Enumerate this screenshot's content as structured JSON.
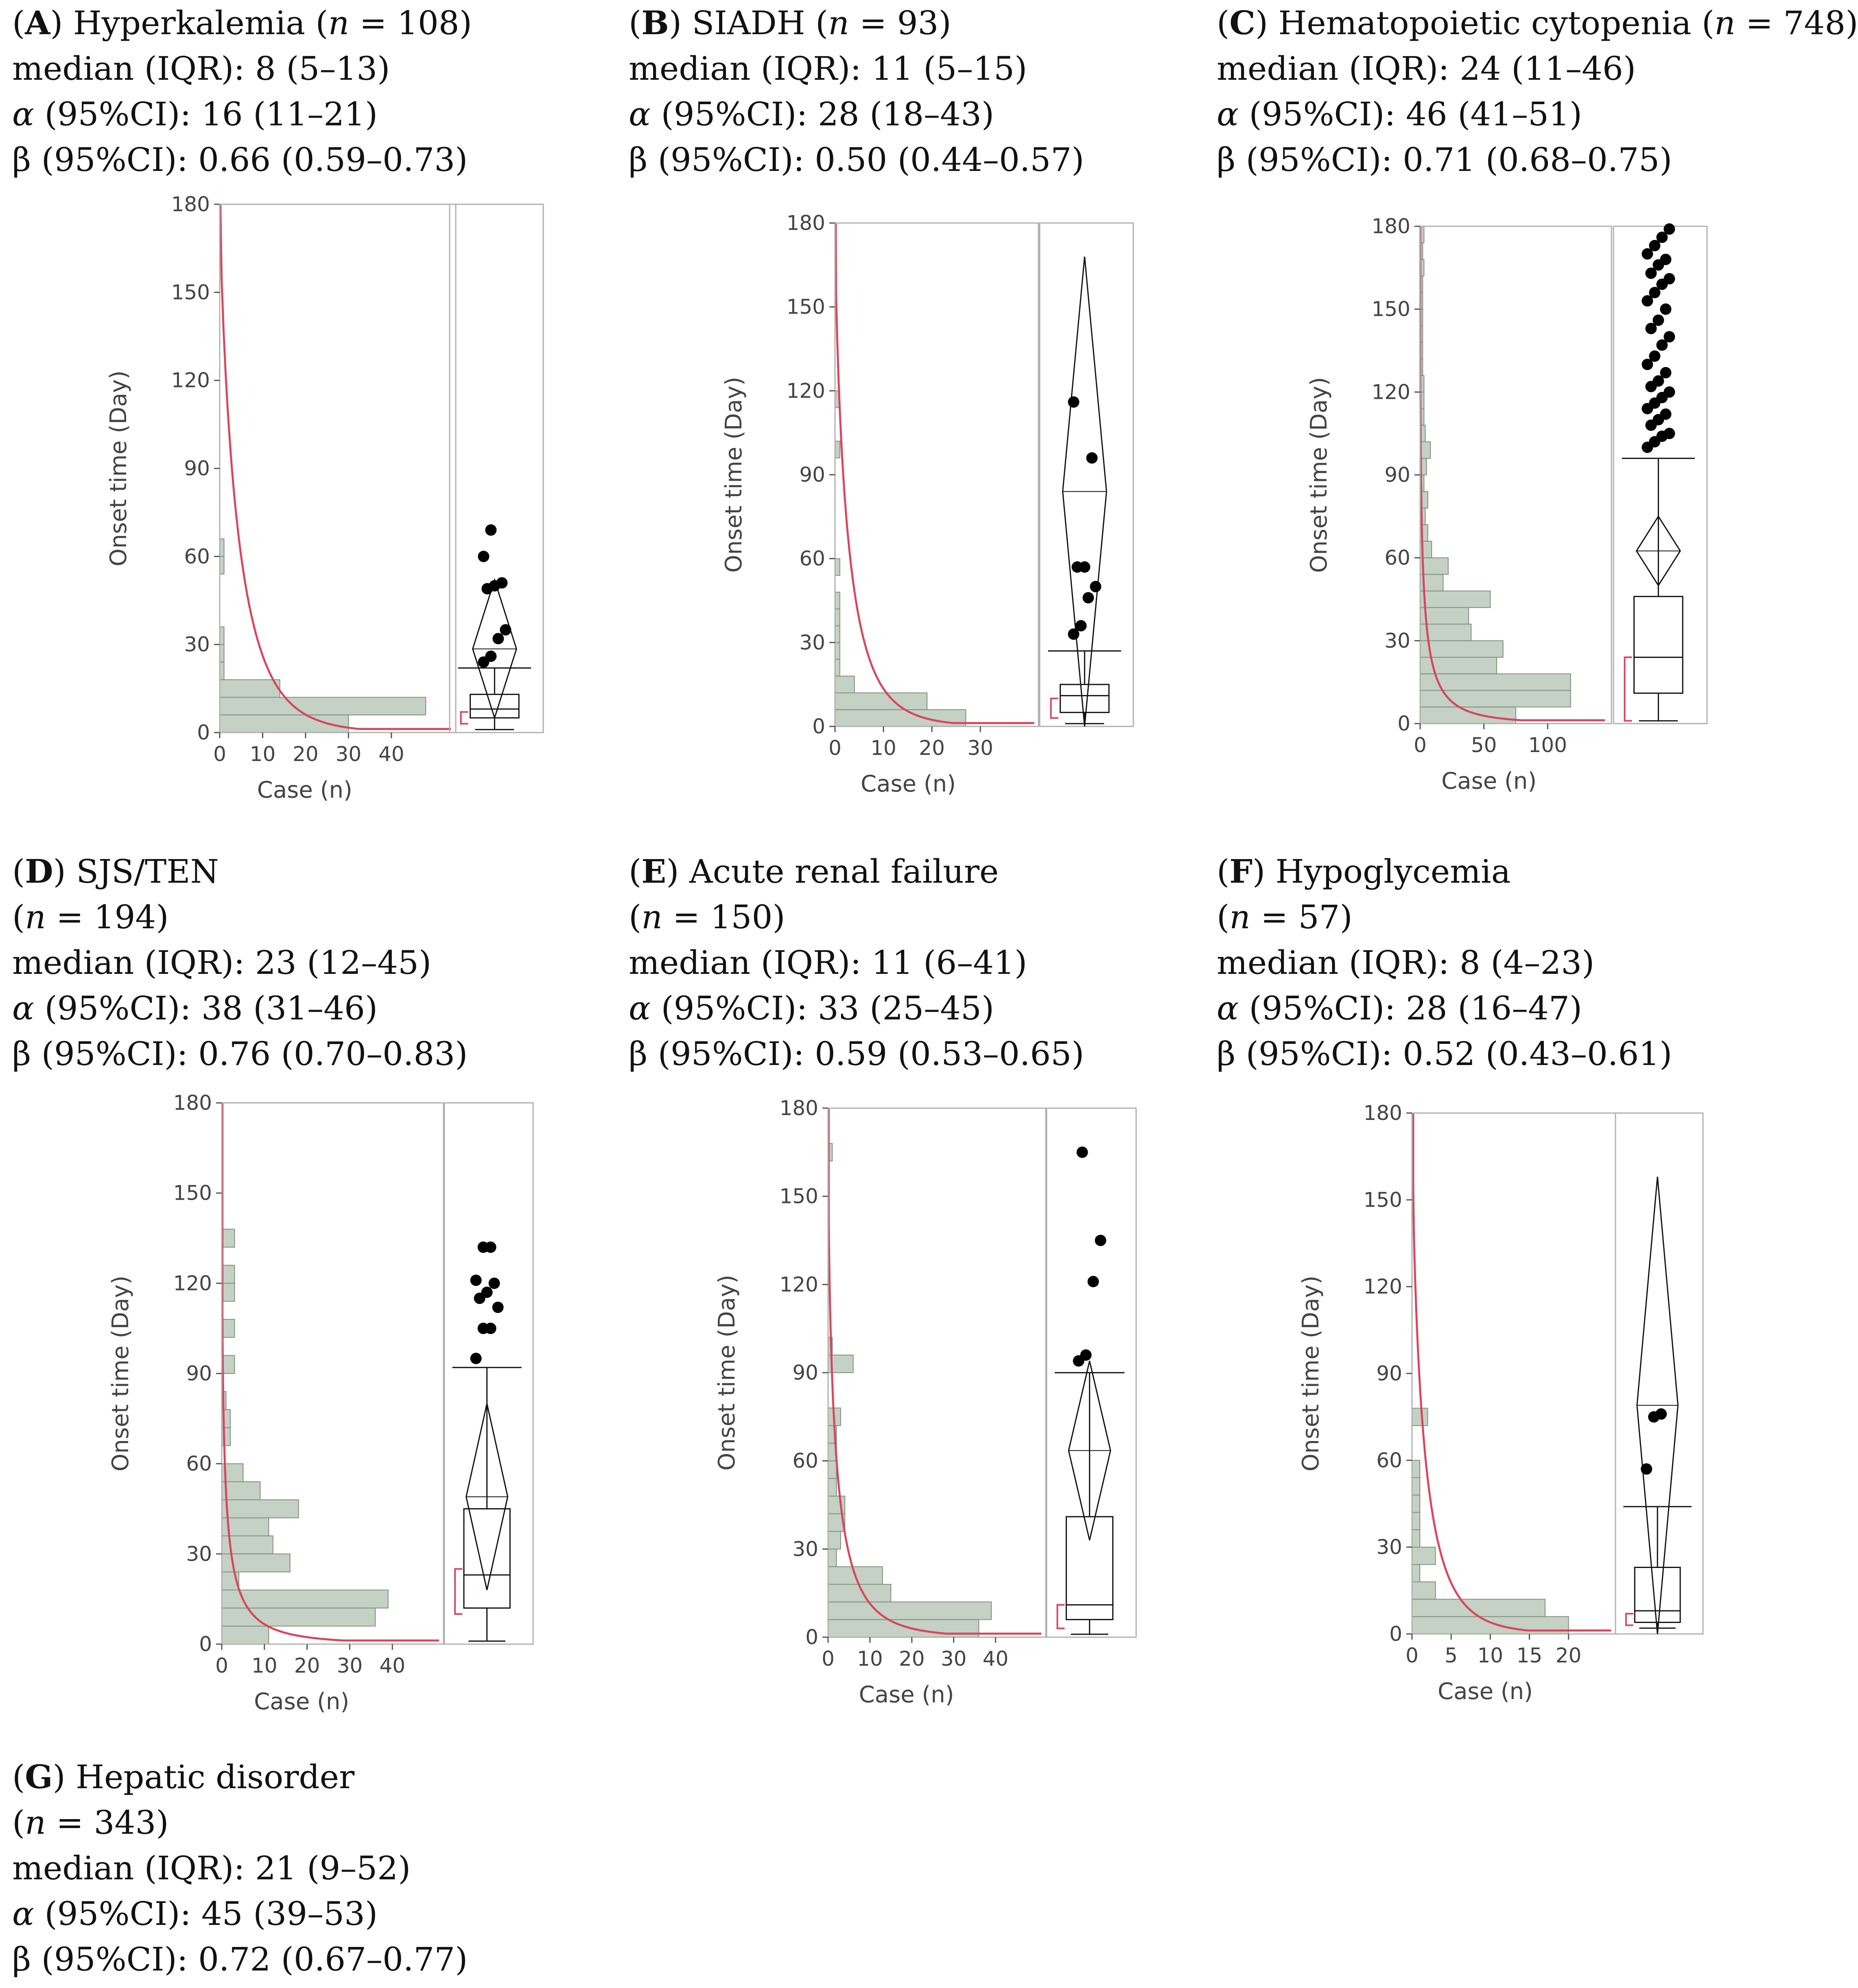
{
  "colors": {
    "hist_fill": "#c4d1c4",
    "hist_stroke": "#7f8f7f",
    "curve": "#d9455f",
    "frame": "#b0b0b0",
    "text": "#444444",
    "point": "#000000"
  },
  "chart_data": [
    {
      "type": "histogram_boxplot",
      "letter": "A",
      "title": "Hyperkalemia",
      "n": "108",
      "median_iqr": "8 (5–13)",
      "alpha_ci": "16 (11–21)",
      "beta_ci": "0.66 (0.59–0.73)",
      "xlabel": "Case (n)",
      "ylabel": "Onset time (Day)",
      "ylim": [
        0,
        180
      ],
      "yticks": [
        0,
        30,
        60,
        90,
        120,
        150,
        180
      ],
      "xlim": [
        0,
        55
      ],
      "xticks": [
        0,
        10,
        20,
        30,
        40
      ],
      "bin_width": 6,
      "bins": [
        [
          0,
          30
        ],
        [
          6,
          48
        ],
        [
          12,
          14
        ],
        [
          18,
          1
        ],
        [
          24,
          1
        ],
        [
          30,
          1
        ],
        [
          54,
          1
        ],
        [
          60,
          1
        ]
      ],
      "curve": {
        "k": 1.05,
        "a": 1.3,
        "c": 1.35
      },
      "box": {
        "min": 1,
        "q1": 5,
        "median": 8,
        "q3": 13,
        "whisker_high": 22
      },
      "diamond": {
        "low": 5,
        "high": 52
      },
      "outliers": [
        24,
        26,
        32,
        35,
        49,
        50,
        51,
        60,
        69
      ],
      "confidence_bracket": [
        3,
        7
      ]
    },
    {
      "type": "histogram_boxplot",
      "letter": "B",
      "title": "SIADH",
      "n": "93",
      "median_iqr": "11 (5–15)",
      "alpha_ci": "28 (18–43)",
      "beta_ci": "0.50 (0.44–0.57)",
      "xlabel": "Case (n)",
      "ylabel": "Onset time (Day)",
      "ylim": [
        0,
        180
      ],
      "yticks": [
        0,
        30,
        60,
        90,
        120,
        150,
        180
      ],
      "xlim": [
        0,
        42
      ],
      "xticks": [
        0,
        10,
        20,
        30
      ],
      "bin_width": 6,
      "bins": [
        [
          0,
          27
        ],
        [
          6,
          19
        ],
        [
          12,
          4
        ],
        [
          18,
          1
        ],
        [
          24,
          1
        ],
        [
          30,
          1
        ],
        [
          36,
          1
        ],
        [
          42,
          1
        ],
        [
          54,
          1
        ],
        [
          96,
          1
        ],
        [
          114,
          1
        ]
      ],
      "curve": {
        "k": 1.15,
        "a": 1.4,
        "c": 1.2
      },
      "box": {
        "min": 1,
        "q1": 5,
        "median": 11,
        "q3": 15,
        "whisker_high": 27
      },
      "diamond": {
        "low": 0,
        "high": 168
      },
      "outliers": [
        33,
        36,
        46,
        50,
        57,
        57,
        96,
        116
      ],
      "confidence_bracket": [
        3,
        10
      ]
    },
    {
      "type": "histogram_boxplot",
      "letter": "C",
      "title": "Hematopoietic cytopenia",
      "n": "748",
      "median_iqr": "24 (11–46)",
      "alpha_ci": "46 (41–51)",
      "beta_ci": "0.71 (0.68–0.75)",
      "xlabel": "Case (n)",
      "ylabel": "Onset time (Day)",
      "ylim": [
        0,
        180
      ],
      "yticks": [
        0,
        30,
        60,
        90,
        120,
        150,
        180
      ],
      "xlim": [
        0,
        150
      ],
      "xticks": [
        0,
        50,
        100
      ],
      "bin_width": 6,
      "bins": [
        [
          0,
          75
        ],
        [
          6,
          118
        ],
        [
          12,
          118
        ],
        [
          18,
          60
        ],
        [
          24,
          65
        ],
        [
          30,
          40
        ],
        [
          36,
          38
        ],
        [
          42,
          55
        ],
        [
          48,
          18
        ],
        [
          54,
          22
        ],
        [
          60,
          9
        ],
        [
          66,
          6
        ],
        [
          72,
          4
        ],
        [
          78,
          6
        ],
        [
          84,
          3
        ],
        [
          90,
          5
        ],
        [
          96,
          8
        ],
        [
          102,
          4
        ],
        [
          108,
          3
        ],
        [
          114,
          3
        ],
        [
          120,
          3
        ],
        [
          126,
          2
        ],
        [
          132,
          2
        ],
        [
          138,
          2
        ],
        [
          144,
          2
        ],
        [
          150,
          2
        ],
        [
          156,
          2
        ],
        [
          162,
          3
        ],
        [
          168,
          2
        ],
        [
          174,
          3
        ]
      ],
      "curve": {
        "k": 2.1,
        "a": 3.6,
        "c": 1.0
      },
      "box": {
        "min": 1,
        "q1": 11,
        "median": 24,
        "q3": 46,
        "whisker_high": 96
      },
      "diamond": {
        "low": 50,
        "high": 75
      },
      "outliers": [
        100,
        102,
        104,
        105,
        108,
        110,
        112,
        114,
        116,
        118,
        120,
        122,
        124,
        127,
        130,
        133,
        137,
        140,
        143,
        146,
        150,
        153,
        156,
        159,
        161,
        163,
        166,
        168,
        170,
        173,
        176,
        179
      ],
      "confidence_bracket": [
        1,
        24
      ]
    },
    {
      "type": "histogram_boxplot",
      "letter": "D",
      "title": "SJS/TEN",
      "n": "194",
      "median_iqr": "23 (12–45)",
      "alpha_ci": "38 (31–46)",
      "beta_ci": "0.76 (0.70–0.83)",
      "xlabel": "Case (n)",
      "ylabel": "Onset time (Day)",
      "ylim": [
        0,
        180
      ],
      "yticks": [
        0,
        30,
        60,
        90,
        120,
        150,
        180
      ],
      "xlim": [
        0,
        52
      ],
      "xticks": [
        0,
        10,
        20,
        30,
        40
      ],
      "bin_width": 6,
      "bins": [
        [
          0,
          11
        ],
        [
          6,
          36
        ],
        [
          12,
          39
        ],
        [
          18,
          4
        ],
        [
          24,
          16
        ],
        [
          30,
          12
        ],
        [
          36,
          11
        ],
        [
          42,
          18
        ],
        [
          48,
          9
        ],
        [
          54,
          5
        ],
        [
          66,
          2
        ],
        [
          72,
          2
        ],
        [
          78,
          1
        ],
        [
          90,
          3
        ],
        [
          102,
          3
        ],
        [
          114,
          3
        ],
        [
          120,
          3
        ],
        [
          132,
          3
        ]
      ],
      "curve": {
        "k": 2.2,
        "a": 1.8,
        "c": 1.4
      },
      "box": {
        "min": 1,
        "q1": 12,
        "median": 23,
        "q3": 45,
        "whisker_high": 92
      },
      "diamond": {
        "low": 18,
        "high": 80
      },
      "outliers": [
        95,
        105,
        105,
        112,
        115,
        117,
        120,
        121,
        132,
        132
      ],
      "confidence_bracket": [
        10,
        25
      ]
    },
    {
      "type": "histogram_boxplot",
      "letter": "E",
      "title": "Acute renal failure",
      "n": "150",
      "median_iqr": "11 (6–41)",
      "alpha_ci": "33 (25–45)",
      "beta_ci": "0.59 (0.53–0.65)",
      "xlabel": "Case (n)",
      "ylabel": "Onset time (Day)",
      "ylim": [
        0,
        180
      ],
      "yticks": [
        0,
        30,
        60,
        90,
        120,
        150,
        180
      ],
      "xlim": [
        0,
        52
      ],
      "xticks": [
        0,
        10,
        20,
        30,
        40
      ],
      "bin_width": 6,
      "bins": [
        [
          0,
          36
        ],
        [
          6,
          39
        ],
        [
          12,
          15
        ],
        [
          18,
          13
        ],
        [
          24,
          2
        ],
        [
          30,
          3
        ],
        [
          36,
          4
        ],
        [
          42,
          4
        ],
        [
          48,
          2
        ],
        [
          54,
          2
        ],
        [
          60,
          2
        ],
        [
          66,
          2
        ],
        [
          72,
          3
        ],
        [
          90,
          6
        ],
        [
          96,
          1
        ],
        [
          162,
          1
        ]
      ],
      "curve": {
        "k": 1.5,
        "a": 1.8,
        "c": 1.3
      },
      "box": {
        "min": 1,
        "q1": 6,
        "median": 11,
        "q3": 41,
        "whisker_high": 90
      },
      "diamond": {
        "low": 33,
        "high": 94
      },
      "outliers": [
        94,
        96,
        121,
        135,
        165
      ],
      "confidence_bracket": [
        3,
        11
      ]
    },
    {
      "type": "histogram_boxplot",
      "letter": "F",
      "title": "Hypoglycemia",
      "n": "57",
      "median_iqr": "8 (4–23)",
      "alpha_ci": "28 (16–47)",
      "beta_ci": "0.52 (0.43–0.61)",
      "xlabel": "Case (n)",
      "ylabel": "Onset time (Day)",
      "ylim": [
        0,
        180
      ],
      "yticks": [
        0,
        30,
        60,
        90,
        120,
        150,
        180
      ],
      "xlim": [
        0,
        26
      ],
      "xticks": [
        0,
        5,
        10,
        15,
        20
      ],
      "bin_width": 6,
      "bins": [
        [
          0,
          20
        ],
        [
          6,
          17
        ],
        [
          12,
          3
        ],
        [
          18,
          1
        ],
        [
          24,
          3
        ],
        [
          30,
          1
        ],
        [
          36,
          1
        ],
        [
          42,
          1
        ],
        [
          48,
          1
        ],
        [
          54,
          1
        ],
        [
          72,
          2
        ]
      ],
      "curve": {
        "k": 1.2,
        "a": 1.3,
        "c": 0.5
      },
      "box": {
        "min": 2,
        "q1": 4,
        "median": 8,
        "q3": 23,
        "whisker_high": 44
      },
      "diamond": {
        "low": 0,
        "high": 158
      },
      "outliers": [
        57,
        75,
        76
      ],
      "confidence_bracket": [
        3,
        7
      ]
    },
    {
      "type": "summary",
      "letter": "G",
      "title": "Hepatic disorder",
      "n": "343",
      "median_iqr": "21 (9–52)",
      "alpha_ci": "45 (39–53)",
      "beta_ci": "0.72 (0.67–0.77)"
    }
  ]
}
